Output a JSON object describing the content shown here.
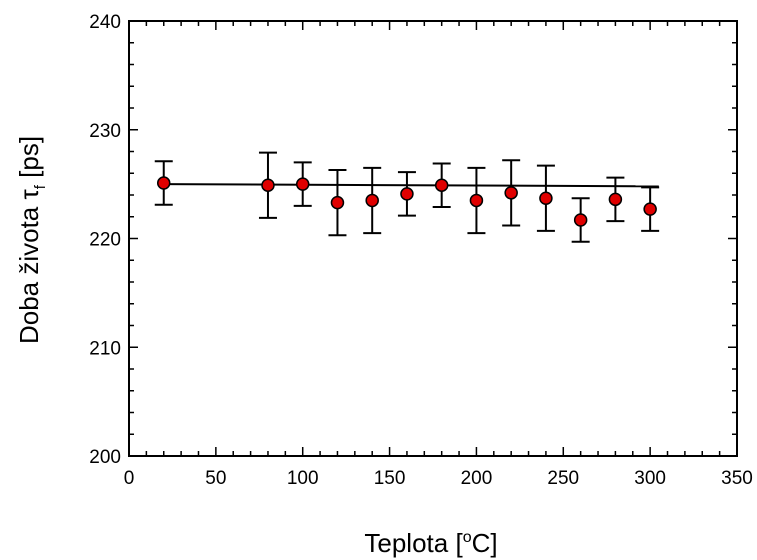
{
  "chart_data": {
    "type": "scatter",
    "xlabel": "Teplota [",
    "xlabel_sup": "o",
    "xlabel_tail": "C]",
    "ylabel": "Doba života τ",
    "ylabel_sub": "f",
    "ylabel_tail": " [ps]",
    "xlim": [
      0,
      350
    ],
    "ylim": [
      200,
      240
    ],
    "xticks": [
      0,
      50,
      100,
      150,
      200,
      250,
      300,
      350
    ],
    "yticks": [
      200,
      210,
      220,
      230,
      240
    ],
    "grid": false,
    "marker_color": "#e00000",
    "series": [
      {
        "x": [
          20,
          80,
          100,
          120,
          140,
          160,
          180,
          200,
          220,
          240,
          260,
          280,
          300
        ],
        "y": [
          225.1,
          224.9,
          225.0,
          223.3,
          223.5,
          224.1,
          224.9,
          223.5,
          224.2,
          223.7,
          221.7,
          223.6,
          222.7
        ],
        "yerr": [
          2.0,
          3.0,
          2.0,
          3.0,
          3.0,
          2.0,
          2.0,
          3.0,
          3.0,
          3.0,
          2.0,
          2.0,
          2.0
        ]
      }
    ],
    "fit_line": {
      "x": [
        20,
        305
      ],
      "y": [
        225.0,
        224.8
      ]
    }
  }
}
